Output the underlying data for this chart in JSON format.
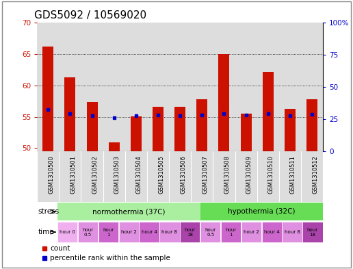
{
  "title": "GDS5092 / 10569020",
  "samples": [
    "GSM1310500",
    "GSM1310501",
    "GSM1310502",
    "GSM1310503",
    "GSM1310504",
    "GSM1310505",
    "GSM1310506",
    "GSM1310507",
    "GSM1310508",
    "GSM1310509",
    "GSM1310510",
    "GSM1310511",
    "GSM1310512"
  ],
  "count_values": [
    66.2,
    61.3,
    57.4,
    50.9,
    55.1,
    56.6,
    56.6,
    57.8,
    65.0,
    55.5,
    62.2,
    56.3,
    57.8
  ],
  "percentile_values": [
    56.2,
    55.5,
    55.2,
    54.8,
    55.2,
    55.3,
    55.2,
    55.3,
    55.5,
    55.3,
    55.5,
    55.2,
    55.4
  ],
  "ylim_left": [
    49.5,
    70
  ],
  "ylim_right": [
    0,
    100
  ],
  "yticks_left": [
    50,
    55,
    60,
    65,
    70
  ],
  "yticks_right": [
    0,
    25,
    50,
    75,
    100
  ],
  "bar_color": "#cc1100",
  "dot_color": "#0000cc",
  "bar_bottom": 49.5,
  "axis_bg": "#dddddd",
  "gridline_color": "#000000",
  "title_fontsize": 11,
  "tick_fontsize": 7.5,
  "label_fontsize": 8,
  "stress_norm_color": "#aaeea0",
  "stress_hypo_color": "#66dd55",
  "time_cell_colors": [
    "#f0b0f0",
    "#e090e0",
    "#cc66cc",
    "#e090e0",
    "#cc66cc",
    "#e090e0",
    "#aa44aa",
    "#e090e0",
    "#cc66cc",
    "#e090e0",
    "#cc66cc",
    "#e090e0",
    "#aa44aa"
  ],
  "time_labels": [
    "hour 0",
    "hour\n0.5",
    "hour\n1",
    "hour 2",
    "hour 4",
    "hour 8",
    "hour\n18",
    "hour\n0.5",
    "hour\n1",
    "hour 2",
    "hour 4",
    "hour 8",
    "hour\n18"
  ]
}
